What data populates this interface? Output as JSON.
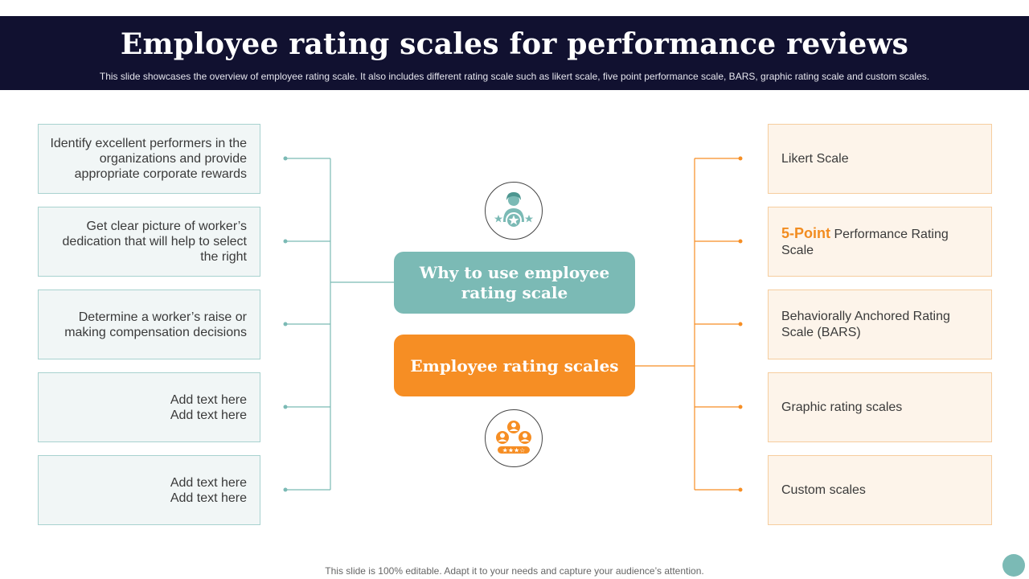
{
  "header": {
    "title": "Employee rating scales for performance reviews",
    "subtitle": "This slide showcases the overview of employee rating scale. It also includes different rating scale such as likert scale, five point performance scale, BARS, graphic rating scale and custom scales."
  },
  "left_items": [
    {
      "line1": "Identify excellent performers in the",
      "line2": "organizations and provide",
      "line3": "appropriate corporate rewards"
    },
    {
      "line1": "Get clear picture of worker’s",
      "line2": "dedication that will help to select",
      "line3": "the right"
    },
    {
      "line1": "Determine a worker’s raise or",
      "line2": "making compensation decisions"
    },
    {
      "line1": "Add text here",
      "line2": "Add text here"
    },
    {
      "line1": "Add text here",
      "line2": "Add text here"
    }
  ],
  "center": {
    "why_line1": "Why to use employee",
    "why_line2": "rating scale",
    "scales_label": "Employee rating scales",
    "top_icon": "employee-rating-stars-icon",
    "bottom_icon": "team-rating-icon"
  },
  "right_items": [
    {
      "text": "Likert Scale"
    },
    {
      "highlight": "5-Point",
      "text": " Performance Rating Scale"
    },
    {
      "text": "Behaviorally Anchored Rating Scale (BARS)"
    },
    {
      "text": "Graphic rating scales"
    },
    {
      "text": "Custom scales"
    }
  ],
  "footer": "This slide is 100% editable. Adapt it to your needs and capture your audience’s attention.",
  "colors": {
    "header_bg": "#111130",
    "teal": "#7bbab5",
    "orange": "#f68e24"
  }
}
